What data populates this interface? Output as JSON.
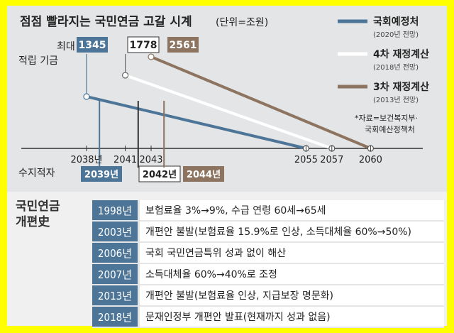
{
  "title": "점점 빨라지는 국민연금 고갈 시계",
  "unit": "(단위=조원)",
  "labels": {
    "max_fund": "최대\n적립 기금",
    "deficit": "수지적자"
  },
  "source": "*자료=보건복지부·\n국회예산정책처",
  "chart_data": {
    "type": "line",
    "title": "점점 빨라지는 국민연금 고갈 시계",
    "unit": "조원",
    "x_ticks": [
      2038,
      2041,
      2043,
      2055,
      2057,
      2060
    ],
    "series": [
      {
        "name": "국회예정처",
        "note": "(2020년 전망)",
        "color": "#4c7598",
        "peak_year": 2038,
        "peak_value": 1345,
        "deficit_year": 2039,
        "deficit_label": "2039년",
        "depletion_year": 2055,
        "depletion_label": "2055"
      },
      {
        "name": "4차 재정계산",
        "note": "(2018년 전망)",
        "color": "#ffffff",
        "peak_year": 2041,
        "peak_value": 1778,
        "deficit_year": 2042,
        "deficit_label": "2042년",
        "depletion_year": 2057,
        "depletion_label": "2057"
      },
      {
        "name": "3차 재정계산",
        "note": "(2013년 전망)",
        "color": "#8c7460",
        "peak_year": 2043,
        "peak_value": 2561,
        "deficit_year": 2044,
        "deficit_label": "2044년",
        "depletion_year": 2060,
        "depletion_label": "2060"
      }
    ]
  },
  "reform": {
    "title": "국민연금\n개편史",
    "rows": [
      {
        "year": "1998년",
        "text": "보험료율 3%→9%, 수급 연령 60세→65세"
      },
      {
        "year": "2003년",
        "text": "개편안 불발(보험료율 15.9%로 인상, 소득대체율 60%→50%)"
      },
      {
        "year": "2006년",
        "text": "국회 국민연금특위 성과 없이 해산"
      },
      {
        "year": "2007년",
        "text": "소득대체율 60%→40%로 조정"
      },
      {
        "year": "2013년",
        "text": "개편안 불발(보험료율 인상, 지급보장 명문화)"
      },
      {
        "year": "2018년",
        "text": "문재인정부 개편안 발표(현재까지 성과 없음)"
      }
    ]
  }
}
